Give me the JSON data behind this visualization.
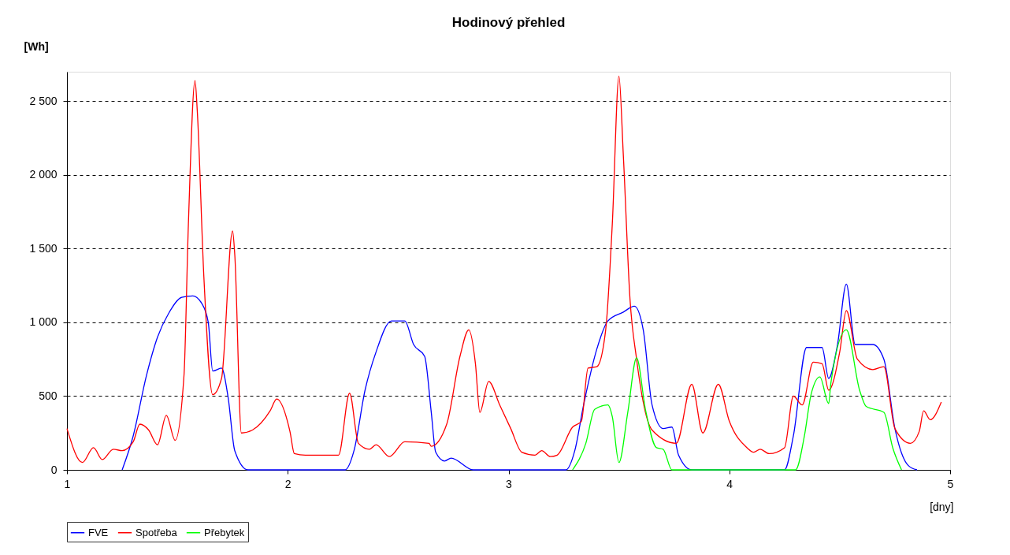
{
  "chart_data": {
    "type": "line",
    "title": "Hodinový přehled",
    "ylabel": "[Wh]",
    "xlabel": "[dny]",
    "xlim": [
      1,
      5
    ],
    "xticks": [
      1,
      2,
      3,
      4,
      5
    ],
    "ylim": [
      0,
      2700
    ],
    "yticks": [
      0,
      500,
      {
        "value": 1000,
        "label": "1 000"
      },
      {
        "value": 1500,
        "label": "1 500"
      },
      {
        "value": 2000,
        "label": "2 000"
      },
      {
        "value": 2500,
        "label": "2 500"
      }
    ],
    "grid": "y",
    "legend": "bottom",
    "marker": "none",
    "line_style": "solid",
    "series": [
      {
        "name": "FVE",
        "color": "#0000ff",
        "x": [
          1.25,
          1.3,
          1.36,
          1.41,
          1.46,
          1.52,
          1.57,
          1.61,
          1.64,
          1.66,
          1.7,
          1.73,
          1.76,
          1.82,
          2.26,
          2.3,
          2.35,
          2.4,
          2.47,
          2.53,
          2.57,
          2.62,
          2.65,
          2.67,
          2.71,
          2.74,
          2.84,
          3.26,
          3.3,
          3.34,
          3.4,
          3.45,
          3.52,
          3.57,
          3.61,
          3.65,
          3.7,
          3.74,
          3.77,
          3.83,
          4.25,
          4.29,
          4.35,
          4.42,
          4.45,
          4.49,
          4.53,
          4.57,
          4.65,
          4.7,
          4.75,
          4.81,
          4.85
        ],
        "values": [
          0,
          230,
          640,
          900,
          1060,
          1170,
          1180,
          1130,
          1000,
          670,
          690,
          490,
          130,
          0,
          0,
          130,
          540,
          800,
          1010,
          1010,
          850,
          770,
          390,
          120,
          60,
          80,
          0,
          0,
          130,
          440,
          820,
          1010,
          1070,
          1110,
          950,
          440,
          280,
          290,
          100,
          0,
          0,
          230,
          830,
          830,
          620,
          850,
          1260,
          850,
          850,
          750,
          280,
          30,
          0
        ]
      },
      {
        "name": "Spotřeba",
        "color": "#ff0000",
        "x": [
          1.0,
          1.07,
          1.12,
          1.16,
          1.21,
          1.25,
          1.3,
          1.33,
          1.37,
          1.41,
          1.45,
          1.49,
          1.53,
          1.55,
          1.58,
          1.59,
          1.62,
          1.66,
          1.7,
          1.75,
          1.76,
          1.79,
          1.84,
          1.92,
          1.95,
          2.01,
          2.03,
          2.08,
          2.23,
          2.28,
          2.32,
          2.37,
          2.4,
          2.46,
          2.53,
          2.64,
          2.65,
          2.72,
          2.78,
          2.82,
          2.85,
          2.87,
          2.91,
          2.96,
          3.01,
          3.06,
          3.12,
          3.15,
          3.19,
          3.22,
          3.29,
          3.33,
          3.36,
          3.4,
          3.44,
          3.47,
          3.5,
          3.52,
          3.55,
          3.58,
          3.65,
          3.76,
          3.83,
          3.88,
          3.95,
          4.0,
          4.08,
          4.11,
          4.14,
          4.18,
          4.25,
          4.29,
          4.33,
          4.38,
          4.42,
          4.45,
          4.5,
          4.53,
          4.58,
          4.65,
          4.7,
          4.75,
          4.82,
          4.86,
          4.88,
          4.91,
          4.96
        ],
        "values": [
          280,
          50,
          150,
          70,
          140,
          130,
          190,
          310,
          270,
          170,
          370,
          200,
          640,
          1670,
          2640,
          2440,
          1310,
          510,
          620,
          1620,
          1460,
          250,
          270,
          400,
          480,
          260,
          110,
          100,
          100,
          520,
          180,
          140,
          170,
          90,
          190,
          180,
          160,
          310,
          770,
          950,
          720,
          390,
          600,
          440,
          280,
          120,
          100,
          130,
          90,
          100,
          290,
          330,
          690,
          700,
          950,
          1670,
          2670,
          2130,
          1160,
          750,
          270,
          180,
          580,
          250,
          580,
          330,
          150,
          120,
          140,
          110,
          150,
          500,
          440,
          730,
          720,
          540,
          800,
          1080,
          750,
          680,
          700,
          280,
          180,
          260,
          400,
          340,
          460
        ]
      },
      {
        "name": "Přebytek",
        "color": "#00ff00",
        "x": [
          3.29,
          3.35,
          3.39,
          3.45,
          3.47,
          3.5,
          3.54,
          3.58,
          3.62,
          3.67,
          3.7,
          3.74,
          4.3,
          4.34,
          4.37,
          4.41,
          4.45,
          4.46,
          4.53,
          4.59,
          4.62,
          4.7,
          4.74,
          4.78
        ],
        "values": [
          0,
          180,
          410,
          440,
          360,
          50,
          390,
          760,
          410,
          150,
          140,
          0,
          0,
          230,
          510,
          630,
          450,
          590,
          950,
          540,
          430,
          390,
          150,
          0
        ]
      }
    ]
  }
}
